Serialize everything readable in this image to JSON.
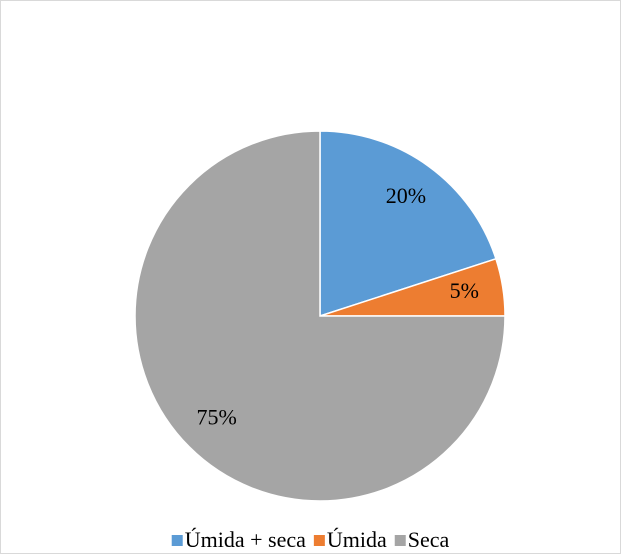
{
  "chart_data": {
    "type": "pie",
    "categories": [
      "Úmida + seca",
      "Úmida",
      "Seca"
    ],
    "values": [
      20,
      5,
      75
    ],
    "value_labels": [
      "20%",
      "5%",
      "75%"
    ],
    "colors": [
      "#5b9bd5",
      "#ed7d31",
      "#a5a5a5"
    ],
    "legend": "bottom"
  }
}
